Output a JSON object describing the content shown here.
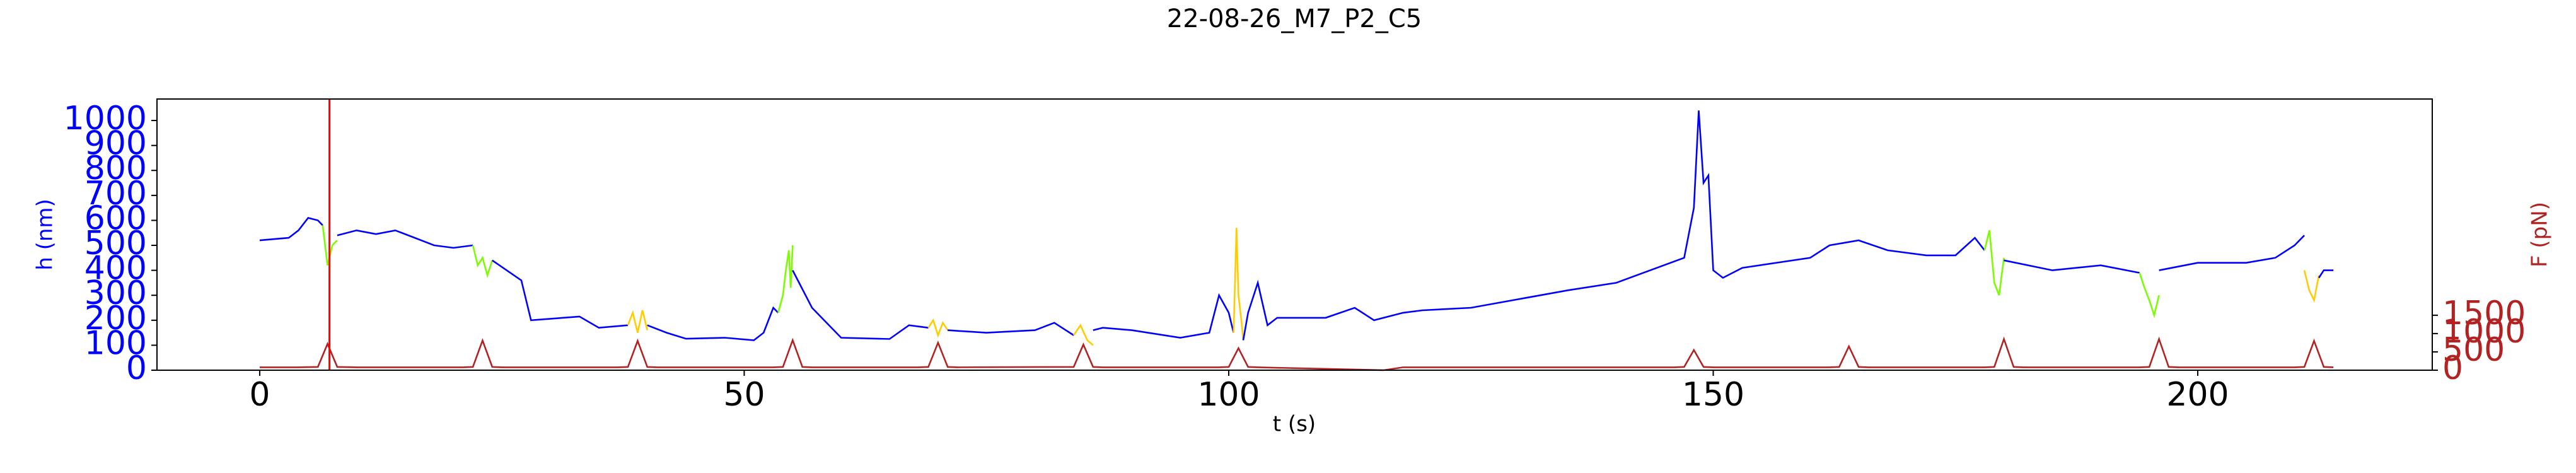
{
  "chart_data": {
    "type": "line",
    "title": "22-08-26_M7_P2_C5",
    "x_label": "t (s)",
    "y_label": "h (nm)",
    "y2_label": "F (pN)",
    "xlim": [
      -10.6,
      224.2
    ],
    "xticks": [
      0,
      50,
      100,
      150,
      200
    ],
    "ylim": [
      0,
      1086
    ],
    "yticks": [
      0,
      100,
      200,
      300,
      400,
      500,
      600,
      700,
      800,
      900,
      1000
    ],
    "y2lim": [
      0,
      7400
    ],
    "y2ticks": [
      0,
      500,
      1000,
      1500
    ],
    "y_color": "#0000ff",
    "y2_color": "#b22222",
    "vline": 7.2,
    "vline_color": "#ff0000",
    "grid": false,
    "series": [
      {
        "color": "#0000ff",
        "x": [
          0,
          3,
          4,
          5,
          6,
          6.5
        ],
        "values": [
          520,
          530,
          560,
          610,
          600,
          580
        ]
      },
      {
        "color": "#7cfc00",
        "x": [
          6.5,
          7,
          7.5,
          8
        ],
        "values": [
          580,
          420,
          500,
          520
        ]
      },
      {
        "color": "#0000ff",
        "x": [
          8,
          10,
          12,
          14,
          16,
          18,
          20,
          22
        ],
        "values": [
          540,
          560,
          545,
          560,
          530,
          500,
          490,
          500
        ]
      },
      {
        "color": "#7cfc00",
        "x": [
          22,
          22.5,
          23,
          23.5,
          24
        ],
        "values": [
          500,
          420,
          450,
          380,
          440
        ]
      },
      {
        "color": "#0000ff",
        "x": [
          24,
          27,
          28,
          33,
          35,
          38
        ],
        "values": [
          440,
          360,
          200,
          215,
          170,
          180
        ]
      },
      {
        "color": "#ffcc00",
        "x": [
          38,
          38.5,
          39,
          39.5,
          40
        ],
        "values": [
          180,
          230,
          150,
          240,
          160
        ]
      },
      {
        "color": "#0000ff",
        "x": [
          40,
          42,
          44,
          48,
          51,
          52,
          53,
          53.5
        ],
        "values": [
          180,
          150,
          126,
          130,
          120,
          150,
          250,
          230
        ]
      },
      {
        "color": "#7cfc00",
        "x": [
          53.5,
          54,
          54.3,
          54.6,
          54.8,
          55
        ],
        "values": [
          230,
          300,
          400,
          480,
          330,
          500
        ]
      },
      {
        "color": "#0000ff",
        "x": [
          55,
          57,
          60,
          65,
          67,
          69
        ],
        "values": [
          400,
          250,
          130,
          125,
          180,
          170
        ]
      },
      {
        "color": "#ffcc00",
        "x": [
          69,
          69.5,
          70,
          70.5,
          71
        ],
        "values": [
          170,
          200,
          140,
          190,
          160
        ]
      },
      {
        "color": "#0000ff",
        "x": [
          71,
          75,
          80,
          82,
          84
        ],
        "values": [
          160,
          150,
          160,
          190,
          140
        ]
      },
      {
        "color": "#ffcc00",
        "x": [
          84,
          84.7,
          85.4,
          86
        ],
        "values": [
          140,
          180,
          120,
          100
        ]
      },
      {
        "color": "#0000ff",
        "x": [
          86,
          87,
          90,
          95,
          98,
          99,
          100,
          100.5
        ],
        "values": [
          160,
          170,
          160,
          130,
          150,
          300,
          230,
          150
        ]
      },
      {
        "color": "#ffcc00",
        "x": [
          100.5,
          100.8,
          101,
          101.3,
          101.5
        ],
        "values": [
          150,
          570,
          300,
          200,
          120
        ]
      },
      {
        "color": "#0000ff",
        "x": [
          101.5,
          102,
          103,
          104,
          105,
          110,
          113,
          115,
          118,
          120,
          125,
          135,
          140,
          147,
          148,
          148.5,
          149,
          149.5,
          150,
          151,
          153,
          160,
          162,
          165,
          168,
          172,
          175,
          177,
          178
        ],
        "values": [
          120,
          230,
          350,
          180,
          210,
          210,
          250,
          200,
          230,
          240,
          250,
          320,
          350,
          450,
          650,
          1040,
          750,
          780,
          400,
          370,
          410,
          450,
          500,
          520,
          480,
          460,
          460,
          530,
          480
        ]
      },
      {
        "color": "#7cfc00",
        "x": [
          178,
          178.5,
          179,
          179.5,
          180
        ],
        "values": [
          480,
          560,
          350,
          300,
          450
        ]
      },
      {
        "color": "#0000ff",
        "x": [
          180,
          185,
          190,
          194
        ],
        "values": [
          440,
          400,
          420,
          390
        ]
      },
      {
        "color": "#7cfc00",
        "x": [
          194,
          194.5,
          195,
          195.5,
          196
        ],
        "values": [
          390,
          330,
          280,
          220,
          300
        ]
      },
      {
        "color": "#0000ff",
        "x": [
          196,
          200,
          205,
          208,
          210,
          211
        ],
        "values": [
          400,
          430,
          430,
          450,
          500,
          540
        ]
      },
      {
        "color": "#ffcc00",
        "x": [
          211,
          211.5,
          212,
          212.5
        ],
        "values": [
          400,
          320,
          280,
          380
        ]
      },
      {
        "color": "#0000ff",
        "x": [
          212.5,
          213,
          214
        ],
        "values": [
          370,
          400,
          400
        ]
      },
      {
        "color": "#b22222",
        "axis": "y2",
        "x": [
          0,
          4,
          6,
          7,
          8,
          10,
          21,
          22,
          23,
          24,
          25,
          37,
          38,
          39,
          40,
          41,
          53,
          54,
          55,
          56,
          57,
          68,
          69,
          70,
          71,
          72,
          84,
          85,
          86,
          87,
          99,
          100,
          101,
          102,
          103,
          116,
          118,
          146,
          147,
          148,
          149,
          150,
          162,
          163,
          164,
          165,
          166,
          178,
          179,
          180,
          181,
          182,
          194,
          195,
          196,
          197,
          198,
          210,
          211,
          212,
          213,
          214
        ],
        "values": [
          80,
          80,
          90,
          720,
          90,
          80,
          80,
          90,
          810,
          90,
          80,
          80,
          90,
          800,
          90,
          80,
          80,
          90,
          820,
          90,
          80,
          80,
          90,
          750,
          90,
          80,
          90,
          700,
          90,
          80,
          80,
          90,
          600,
          90,
          80,
          0,
          80,
          80,
          90,
          550,
          90,
          80,
          80,
          90,
          650,
          90,
          80,
          80,
          90,
          850,
          90,
          80,
          80,
          90,
          850,
          90,
          80,
          80,
          90,
          800,
          90,
          80
        ]
      }
    ]
  }
}
